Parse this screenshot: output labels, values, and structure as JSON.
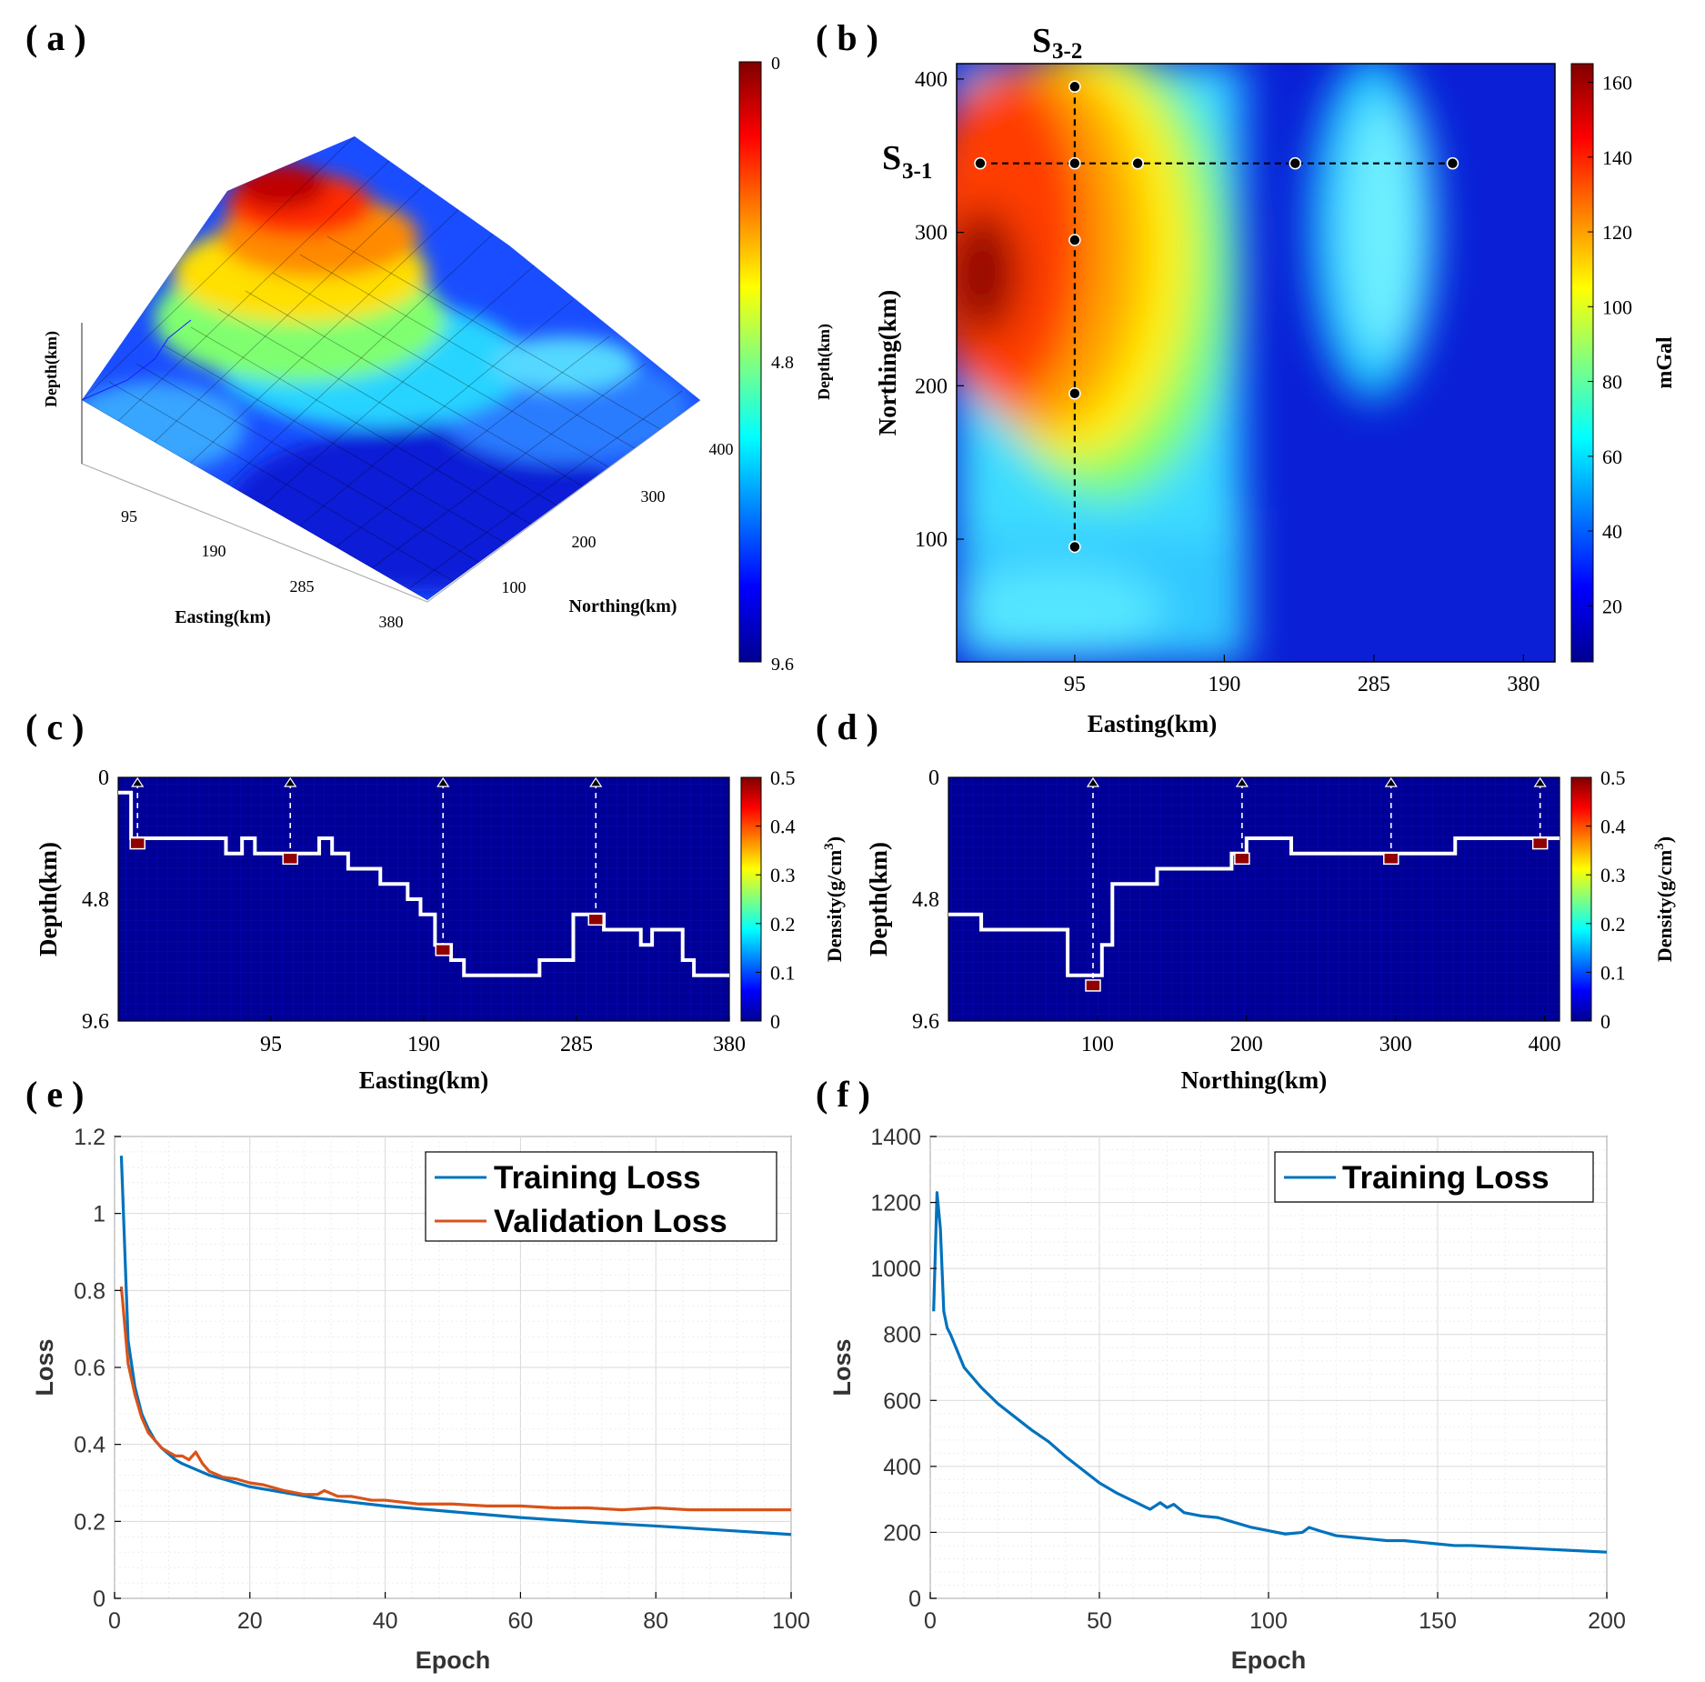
{
  "chart_data": [
    {
      "panel": "( a )",
      "type": "surface",
      "xlabel": "Easting(km)",
      "ylabel": "Northing(km)",
      "zlabel": "Depth(km)",
      "x_ticks": [
        "95",
        "190",
        "285",
        "380"
      ],
      "y_ticks": [
        "100",
        "200",
        "300",
        "400"
      ],
      "colorbar": {
        "label": "Depth(km)",
        "ticks": [
          "0",
          "4.8",
          "9.6"
        ]
      }
    },
    {
      "panel": "( b )",
      "type": "heatmap",
      "xlabel": "Easting(km)",
      "ylabel": "Northing(km)",
      "x_ticks": [
        "95",
        "190",
        "285",
        "380"
      ],
      "y_ticks": [
        "100",
        "200",
        "300",
        "400"
      ],
      "xlim": [
        20,
        400
      ],
      "ylim": [
        20,
        410
      ],
      "colorbar": {
        "label": "mGal",
        "ticks": [
          "20",
          "40",
          "60",
          "80",
          "100",
          "120",
          "140",
          "160"
        ],
        "range": [
          5,
          165
        ]
      },
      "profiles": [
        {
          "name": "S3-1",
          "label_main": "S",
          "label_sub": "3-1",
          "points": [
            [
              35,
              345
            ],
            [
              95,
              345
            ],
            [
              135,
              345
            ],
            [
              235,
              345
            ],
            [
              335,
              345
            ]
          ]
        },
        {
          "name": "S3-2",
          "label_main": "S",
          "label_sub": "3-2",
          "points": [
            [
              95,
              395
            ],
            [
              95,
              295
            ],
            [
              95,
              195
            ],
            [
              95,
              95
            ]
          ]
        }
      ]
    },
    {
      "panel": "( c )",
      "type": "heatmap",
      "xlabel": "Easting(km)",
      "ylabel": "Depth(km)",
      "x_ticks": [
        "95",
        "190",
        "285",
        "380"
      ],
      "y_ticks": [
        "0",
        "4.8",
        "9.6"
      ],
      "xlim": [
        0,
        380
      ],
      "ylim": [
        0,
        9.6
      ],
      "colorbar": {
        "label_main": "Density(g/cm",
        "label_sup": "3",
        "label_end": ")",
        "ticks": [
          "0",
          "0.1",
          "0.2",
          "0.3",
          "0.4",
          "0.5"
        ]
      },
      "boundary": [
        [
          0,
          0.6
        ],
        [
          8,
          0.6
        ],
        [
          8,
          2.4
        ],
        [
          67,
          2.4
        ],
        [
          67,
          3.0
        ],
        [
          77,
          3.0
        ],
        [
          77,
          2.4
        ],
        [
          85,
          2.4
        ],
        [
          85,
          3.0
        ],
        [
          125,
          3.0
        ],
        [
          125,
          2.4
        ],
        [
          133,
          2.4
        ],
        [
          133,
          3.0
        ],
        [
          143,
          3.0
        ],
        [
          143,
          3.6
        ],
        [
          163,
          3.6
        ],
        [
          163,
          4.2
        ],
        [
          180,
          4.2
        ],
        [
          180,
          4.8
        ],
        [
          188,
          4.8
        ],
        [
          188,
          5.4
        ],
        [
          197,
          5.4
        ],
        [
          197,
          6.6
        ],
        [
          207,
          6.6
        ],
        [
          207,
          7.2
        ],
        [
          215,
          7.2
        ],
        [
          215,
          7.8
        ],
        [
          262,
          7.8
        ],
        [
          262,
          7.2
        ],
        [
          283,
          7.2
        ],
        [
          283,
          5.4
        ],
        [
          302,
          5.4
        ],
        [
          302,
          6.0
        ],
        [
          325,
          6.0
        ],
        [
          325,
          6.6
        ],
        [
          332,
          6.6
        ],
        [
          332,
          6.0
        ],
        [
          351,
          6.0
        ],
        [
          351,
          7.2
        ],
        [
          358,
          7.2
        ],
        [
          358,
          7.8
        ],
        [
          380,
          7.8
        ]
      ],
      "markers": [
        [
          12,
          2.6
        ],
        [
          107,
          3.2
        ],
        [
          202,
          6.8
        ],
        [
          297,
          5.6
        ]
      ]
    },
    {
      "panel": "( d )",
      "type": "heatmap",
      "xlabel": "Northing(km)",
      "ylabel": "Depth(km)",
      "x_ticks": [
        "100",
        "200",
        "300",
        "400"
      ],
      "y_ticks": [
        "0",
        "4.8",
        "9.6"
      ],
      "xlim": [
        0,
        410
      ],
      "ylim": [
        0,
        9.6
      ],
      "colorbar": {
        "label_main": "Density(g/cm",
        "label_sup": "3",
        "label_end": ")",
        "ticks": [
          "0",
          "0.1",
          "0.2",
          "0.3",
          "0.4",
          "0.5"
        ]
      },
      "boundary": [
        [
          0,
          5.4
        ],
        [
          22,
          5.4
        ],
        [
          22,
          6.0
        ],
        [
          80,
          6.0
        ],
        [
          80,
          7.8
        ],
        [
          92,
          7.8
        ],
        [
          92,
          7.8
        ],
        [
          103,
          7.8
        ],
        [
          103,
          6.6
        ],
        [
          110,
          6.6
        ],
        [
          110,
          4.2
        ],
        [
          140,
          4.2
        ],
        [
          140,
          3.6
        ],
        [
          190,
          3.6
        ],
        [
          190,
          3.0
        ],
        [
          200,
          3.0
        ],
        [
          200,
          2.4
        ],
        [
          230,
          2.4
        ],
        [
          230,
          3.0
        ],
        [
          340,
          3.0
        ],
        [
          340,
          2.4
        ],
        [
          410,
          2.4
        ]
      ],
      "markers": [
        [
          97,
          8.2
        ],
        [
          197,
          3.2
        ],
        [
          297,
          3.2
        ],
        [
          397,
          2.6
        ]
      ]
    },
    {
      "panel": "( e )",
      "type": "line",
      "xlabel": "Epoch",
      "ylabel": "Loss",
      "xlim": [
        0,
        100
      ],
      "ylim": [
        0,
        1.2
      ],
      "x_ticks": [
        "0",
        "20",
        "40",
        "60",
        "80",
        "100"
      ],
      "y_ticks": [
        "0",
        "0.2",
        "0.4",
        "0.6",
        "0.8",
        "1",
        "1.2"
      ],
      "grid": true,
      "legend_position": "top-right",
      "series": [
        {
          "name": "Training Loss",
          "color": "#0072BD",
          "x": [
            1,
            2,
            3,
            4,
            5,
            6,
            7,
            8,
            9,
            10,
            12,
            14,
            16,
            18,
            20,
            25,
            30,
            35,
            40,
            50,
            60,
            70,
            80,
            90,
            100
          ],
          "y": [
            1.15,
            0.67,
            0.55,
            0.48,
            0.44,
            0.41,
            0.39,
            0.375,
            0.36,
            0.35,
            0.335,
            0.32,
            0.31,
            0.3,
            0.29,
            0.275,
            0.26,
            0.25,
            0.24,
            0.225,
            0.21,
            0.198,
            0.188,
            0.177,
            0.166
          ]
        },
        {
          "name": "Validation Loss",
          "color": "#D95319",
          "x": [
            1,
            2,
            3,
            4,
            5,
            6,
            7,
            8,
            9,
            10,
            11,
            12,
            13,
            14,
            16,
            18,
            20,
            22,
            25,
            28,
            30,
            31,
            33,
            35,
            38,
            40,
            45,
            50,
            55,
            60,
            65,
            70,
            75,
            80,
            85,
            90,
            95,
            100
          ],
          "y": [
            0.81,
            0.61,
            0.53,
            0.47,
            0.43,
            0.41,
            0.39,
            0.38,
            0.37,
            0.37,
            0.36,
            0.38,
            0.35,
            0.33,
            0.315,
            0.31,
            0.3,
            0.295,
            0.28,
            0.27,
            0.27,
            0.28,
            0.265,
            0.265,
            0.255,
            0.255,
            0.245,
            0.245,
            0.24,
            0.24,
            0.235,
            0.235,
            0.23,
            0.235,
            0.23,
            0.23,
            0.23,
            0.23
          ]
        }
      ]
    },
    {
      "panel": "( f )",
      "type": "line",
      "xlabel": "Epoch",
      "ylabel": "Loss",
      "xlim": [
        0,
        200
      ],
      "ylim": [
        0,
        1400
      ],
      "x_ticks": [
        "0",
        "50",
        "100",
        "150",
        "200"
      ],
      "y_ticks": [
        "0",
        "200",
        "400",
        "600",
        "800",
        "1000",
        "1200",
        "1400"
      ],
      "grid": true,
      "legend_position": "top-right",
      "series": [
        {
          "name": "Training Loss",
          "color": "#0072BD",
          "x": [
            1,
            2,
            3,
            4,
            5,
            6,
            8,
            10,
            15,
            20,
            25,
            30,
            35,
            40,
            45,
            50,
            55,
            60,
            65,
            68,
            70,
            72,
            75,
            80,
            85,
            90,
            95,
            100,
            105,
            110,
            112,
            115,
            120,
            125,
            130,
            135,
            140,
            145,
            150,
            155,
            160,
            170,
            180,
            190,
            200
          ],
          "y": [
            870,
            1230,
            1120,
            870,
            820,
            800,
            750,
            700,
            640,
            590,
            550,
            510,
            475,
            430,
            390,
            350,
            320,
            295,
            270,
            290,
            275,
            285,
            260,
            250,
            245,
            230,
            215,
            205,
            195,
            200,
            215,
            205,
            190,
            185,
            180,
            175,
            175,
            170,
            165,
            160,
            160,
            155,
            150,
            145,
            140
          ]
        }
      ]
    }
  ]
}
